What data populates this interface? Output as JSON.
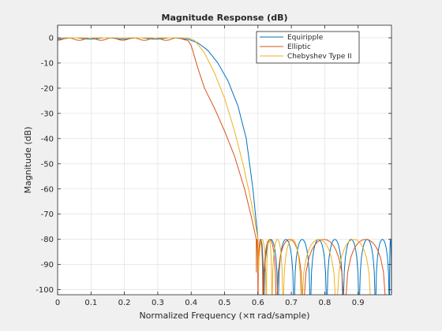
{
  "chart_data": {
    "type": "line",
    "title": "Magnitude Response (dB)",
    "xlabel": "Normalized Frequency (×π rad/sample)",
    "ylabel": "Magnitude (dB)",
    "xlim": [
      0,
      1
    ],
    "ylim": [
      -102,
      5
    ],
    "grid": true,
    "legend_position": "top-right",
    "x_ticks": [
      0,
      0.1,
      0.2,
      0.3,
      0.4,
      0.5,
      0.6,
      0.7,
      0.8,
      0.9
    ],
    "x_tick_labels": [
      "0",
      "0.1",
      "0.2",
      "0.3",
      "0.4",
      "0.5",
      "0.6",
      "0.7",
      "0.8",
      "0.9"
    ],
    "y_ticks": [
      0,
      -10,
      -20,
      -30,
      -40,
      -50,
      -60,
      -70,
      -80,
      -90,
      -100
    ],
    "y_tick_labels": [
      "0",
      "-10",
      "-20",
      "-30",
      "-40",
      "-50",
      "-60",
      "-70",
      "-80",
      "-90",
      "-100"
    ],
    "series": [
      {
        "name": "Equiripple",
        "color": "#0072bd",
        "passband": {
          "x_end": 0.39,
          "ripple_db": 0.5,
          "ripples": 4
        },
        "transition": {
          "x": [
            0.39,
            0.42,
            0.45,
            0.48,
            0.51,
            0.54,
            0.565,
            0.585,
            0.6
          ],
          "y": [
            0,
            -2,
            -5,
            -10,
            -17,
            -27,
            -40,
            -60,
            -80
          ]
        },
        "stopband": {
          "x_start": 0.6,
          "level_db": -80,
          "nulls": [
            0.617,
            0.66,
            0.708,
            0.757,
            0.806,
            0.855,
            0.903,
            0.952,
            0.994
          ]
        }
      },
      {
        "name": "Elliptic",
        "color": "#d95319",
        "passband": {
          "x_end": 0.39,
          "ripple_db": 1,
          "ripples": 6
        },
        "transition": {
          "x": [
            0.39,
            0.4,
            0.42,
            0.44,
            0.47,
            0.5,
            0.53,
            0.56,
            0.58,
            0.595
          ],
          "y": [
            0,
            -3,
            -12,
            -20,
            -28,
            -37,
            -47,
            -60,
            -71,
            -80
          ]
        },
        "stopband": {
          "x_start": 0.595,
          "level_db": -80,
          "nulls": [
            0.6,
            0.615,
            0.655,
            0.735,
            0.86
          ]
        }
      },
      {
        "name": "Chebyshev Type II",
        "color": "#edb120",
        "passband": {
          "x_end": 0.39,
          "ripple_db": 0,
          "ripples": 0
        },
        "transition": {
          "x": [
            0.39,
            0.41,
            0.44,
            0.47,
            0.5,
            0.53,
            0.555,
            0.575,
            0.59,
            0.6
          ],
          "y": [
            0,
            -1,
            -6,
            -14,
            -24,
            -37,
            -50,
            -62,
            -72,
            -80
          ]
        },
        "stopband": {
          "x_start": 0.6,
          "level_db": -80,
          "nulls": [
            0.625,
            0.642,
            0.675,
            0.73,
            0.835
          ]
        }
      }
    ]
  }
}
